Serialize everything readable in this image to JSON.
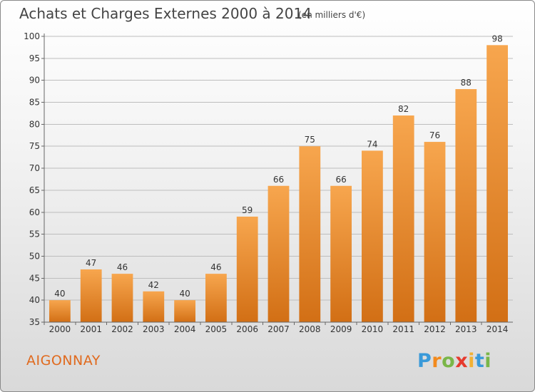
{
  "header": {
    "title": "Achats et Charges Externes 2000 à 2014",
    "subtitle": "(en milliers d'€)"
  },
  "footer": {
    "town": "AIGONNAY",
    "logo_letters": [
      "P",
      "r",
      "o",
      "x",
      "i",
      "t",
      "i"
    ]
  },
  "colors": {
    "bar_light": "#f7a64e",
    "bar_dark": "#d26f15",
    "town": "#e06a1e",
    "logo": [
      "#3a9ad9",
      "#f28a1d",
      "#7ab648",
      "#e63a2e",
      "#f2b134",
      "#3a9ad9",
      "#7ab648"
    ]
  },
  "chart_data": {
    "type": "bar",
    "title": "Achats et Charges Externes 2000 à 2014",
    "subtitle": "(en milliers d'€)",
    "categories": [
      "2000",
      "2001",
      "2002",
      "2003",
      "2004",
      "2005",
      "2006",
      "2007",
      "2008",
      "2009",
      "2010",
      "2011",
      "2012",
      "2013",
      "2014"
    ],
    "values": [
      40,
      47,
      46,
      42,
      40,
      46,
      59,
      66,
      75,
      66,
      74,
      82,
      76,
      88,
      98
    ],
    "ylim": [
      35,
      100
    ],
    "yticks": [
      35,
      40,
      45,
      50,
      55,
      60,
      65,
      70,
      75,
      80,
      85,
      90,
      95,
      100
    ],
    "grid": true,
    "data_labels": true
  }
}
